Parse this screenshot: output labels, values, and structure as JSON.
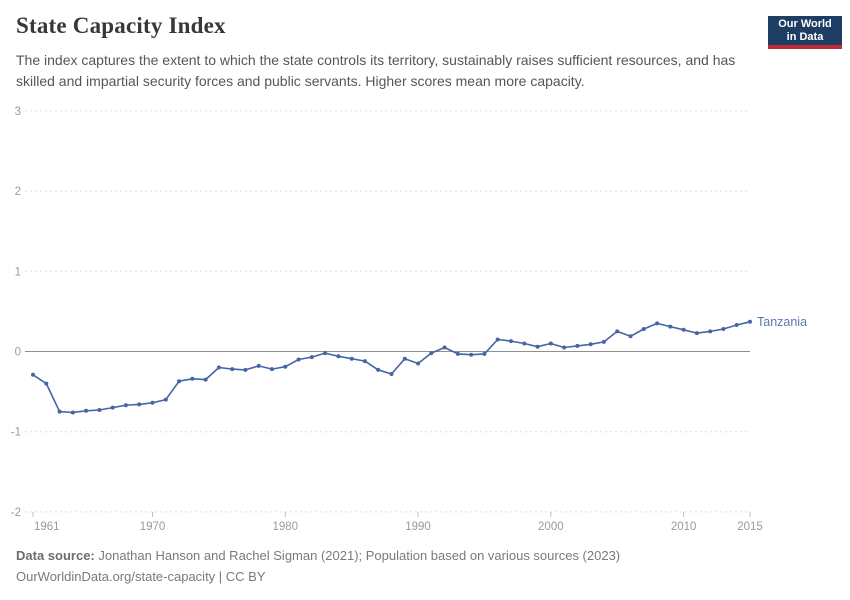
{
  "header": {
    "title": "State Capacity Index",
    "subtitle": "The index captures the extent to which the state controls its territory, sustainably raises sufficient resources, and has skilled and impartial security forces and public servants. Higher scores mean more capacity.",
    "logo": {
      "line1": "Our World",
      "line2": "in Data",
      "bg": "#1d3d63",
      "accent": "#c2293a"
    }
  },
  "chart_data": {
    "type": "line",
    "title": "State Capacity Index",
    "xlabel": "",
    "ylabel": "",
    "xlim": [
      1961,
      2015
    ],
    "ylim": [
      -2,
      3
    ],
    "yticks": [
      3,
      2,
      1,
      0,
      -1,
      -2
    ],
    "xticks": [
      1961,
      1970,
      1980,
      1990,
      2000,
      2010,
      2015
    ],
    "grid": "horizontal-dashed",
    "zero_line": true,
    "legend_position": "end-of-line-label",
    "series": [
      {
        "name": "Tanzania",
        "color": "#4566a5",
        "label_color": "#5b79ae",
        "x": [
          1961,
          1962,
          1963,
          1964,
          1965,
          1966,
          1967,
          1968,
          1969,
          1970,
          1971,
          1972,
          1973,
          1974,
          1975,
          1976,
          1977,
          1978,
          1979,
          1980,
          1981,
          1982,
          1983,
          1984,
          1985,
          1986,
          1987,
          1988,
          1989,
          1990,
          1991,
          1992,
          1993,
          1994,
          1995,
          1996,
          1997,
          1998,
          1999,
          2000,
          2001,
          2002,
          2003,
          2004,
          2005,
          2006,
          2007,
          2008,
          2009,
          2010,
          2011,
          2012,
          2013,
          2014,
          2015
        ],
        "values": [
          -0.29,
          -0.4,
          -0.75,
          -0.76,
          -0.74,
          -0.73,
          -0.7,
          -0.67,
          -0.66,
          -0.64,
          -0.6,
          -0.37,
          -0.34,
          -0.35,
          -0.2,
          -0.22,
          -0.23,
          -0.18,
          -0.22,
          -0.19,
          -0.1,
          -0.07,
          -0.02,
          -0.06,
          -0.09,
          -0.12,
          -0.23,
          -0.28,
          -0.09,
          -0.15,
          -0.02,
          0.05,
          -0.03,
          -0.04,
          -0.03,
          0.15,
          0.13,
          0.1,
          0.06,
          0.1,
          0.05,
          0.07,
          0.09,
          0.12,
          0.25,
          0.19,
          0.28,
          0.35,
          0.31,
          0.27,
          0.23,
          0.25,
          0.28,
          0.33,
          0.37
        ]
      }
    ],
    "colors": {
      "gridline": "#dedede",
      "zero_line": "#8f8f8f",
      "tick_label": "#9a9a9a"
    }
  },
  "footer": {
    "source_label": "Data source:",
    "source_text": " Jonathan Hanson and Rachel Sigman (2021); Population based on various sources (2023)",
    "license_line": "OurWorldinData.org/state-capacity | CC BY"
  }
}
